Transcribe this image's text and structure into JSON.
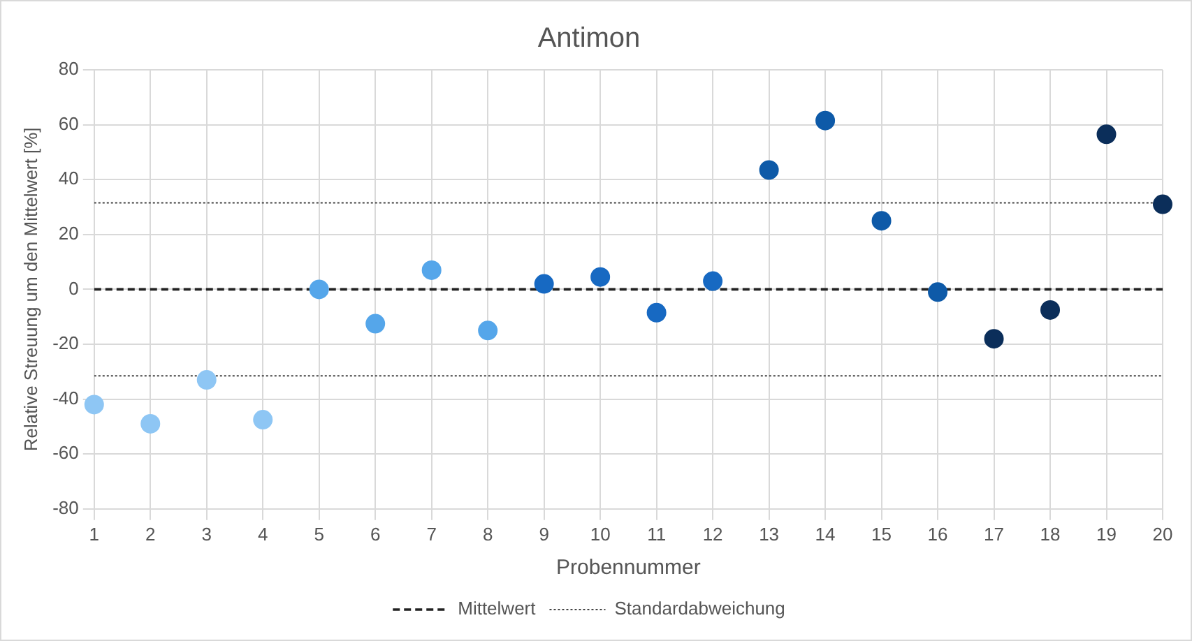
{
  "chart_data": {
    "type": "scatter",
    "title": "Antimon",
    "xlabel": "Probennummer",
    "ylabel": "Relative Streuung um den Mittelwert [%]",
    "x": [
      1,
      2,
      3,
      4,
      5,
      6,
      7,
      8,
      9,
      10,
      11,
      12,
      13,
      14,
      15,
      16,
      17,
      18,
      19,
      20
    ],
    "series": [
      {
        "values": [
          -42,
          -49,
          -33,
          -47.5,
          0,
          -12.5,
          7,
          -15,
          2,
          4.5,
          -8.5,
          3,
          43.5,
          61.5,
          25,
          -1,
          -18,
          -7.5,
          56.5,
          31
        ],
        "colors": [
          "#8ec6f4",
          "#8ec6f4",
          "#8ec6f4",
          "#8ec6f4",
          "#55a6ea",
          "#55a6ea",
          "#55a6ea",
          "#55a6ea",
          "#1769c2",
          "#1769c2",
          "#1769c2",
          "#1769c2",
          "#0e5aa8",
          "#0e5aa8",
          "#0e5aa8",
          "#0e5aa8",
          "#0b2e5a",
          "#0b2e5a",
          "#0b2e5a",
          "#0b2e5a"
        ]
      }
    ],
    "marker": "circle",
    "xlim": [
      1,
      20
    ],
    "xticks": [
      1,
      2,
      3,
      4,
      5,
      6,
      7,
      8,
      9,
      10,
      11,
      12,
      13,
      14,
      15,
      16,
      17,
      18,
      19,
      20
    ],
    "ylim": [
      -80,
      80
    ],
    "yticks": [
      -80,
      -60,
      -40,
      -20,
      0,
      20,
      40,
      60,
      80
    ],
    "grid": true,
    "ref_lines": [
      {
        "axis": "y",
        "value": 0,
        "label": "Mittelwert",
        "color": "#222222",
        "line_style": "dashed"
      },
      {
        "axis": "y",
        "value": 31.5,
        "label": "Standardabweichung",
        "color": "#444444",
        "line_style": "dotted"
      },
      {
        "axis": "y",
        "value": -31.5,
        "color": "#444444",
        "line_style": "dotted"
      }
    ],
    "legend": "bottom"
  }
}
